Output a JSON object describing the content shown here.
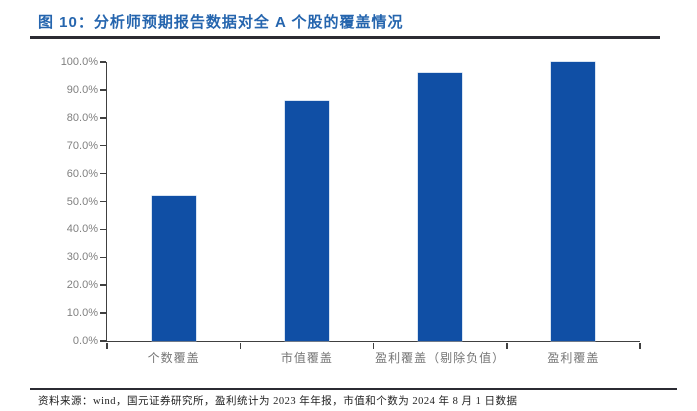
{
  "page": {
    "title": "图 10：分析师预期报告数据对全 A 个股的覆盖情况",
    "footer": "资料来源：wind，国元证券研究所，盈利统计为 2023 年年报，市值和个数为 2024 年 8 月 1 日数据"
  },
  "colors": {
    "title_blue": "#2565AE",
    "bar_blue": "#104FA5",
    "axis": "#404040",
    "tick_label": "#808080",
    "category_label": "#757575",
    "rule_dark": "#2b2b33"
  },
  "chart_data": {
    "type": "bar",
    "title": "分析师预期报告数据对全 A 个股的覆盖情况",
    "categories": [
      "个数覆盖",
      "市值覆盖",
      "盈利覆盖（剔除负值）",
      "盈利覆盖"
    ],
    "values": [
      52.0,
      86.0,
      96.0,
      100.0
    ],
    "xlabel": "",
    "ylabel": "",
    "ylim": [
      0,
      100
    ],
    "ytick_step": 10,
    "ytick_format": "0.0%",
    "grid": false,
    "legend": false,
    "bar_color": "#104FA5"
  }
}
